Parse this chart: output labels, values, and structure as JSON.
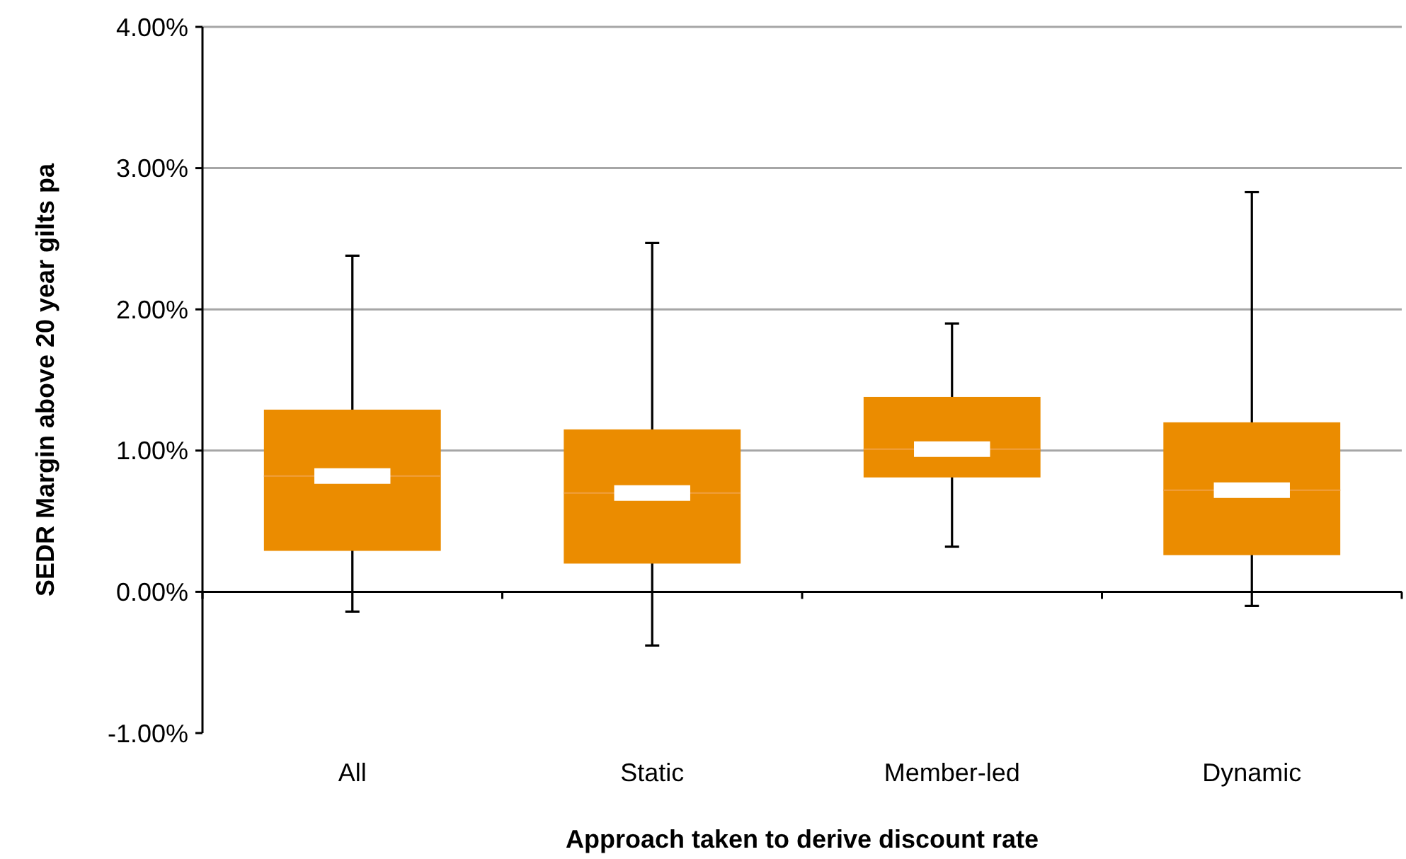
{
  "chart_data": {
    "type": "box",
    "xlabel": "Approach taken to derive discount rate",
    "ylabel": "SEDR Margin above 20 year gilts pa",
    "categories": [
      "All",
      "Static",
      "Member-led",
      "Dynamic"
    ],
    "series": [
      {
        "color": "#eb8c00",
        "boxes": [
          {
            "low": -0.14,
            "q1": 0.29,
            "median": 0.82,
            "q3": 1.29,
            "high": 2.38
          },
          {
            "low": -0.38,
            "q1": 0.2,
            "median": 0.7,
            "q3": 1.15,
            "high": 2.47
          },
          {
            "low": 0.32,
            "q1": 0.81,
            "median": 1.01,
            "q3": 1.38,
            "high": 1.9
          },
          {
            "low": -0.1,
            "q1": 0.26,
            "median": 0.72,
            "q3": 1.2,
            "high": 2.83
          }
        ]
      }
    ],
    "ylim": [
      -1,
      4
    ],
    "yticks": [
      {
        "value": -1,
        "label": "-1.00%"
      },
      {
        "value": 0,
        "label": "0.00%"
      },
      {
        "value": 1,
        "label": "1.00%"
      },
      {
        "value": 2,
        "label": "2.00%"
      },
      {
        "value": 3,
        "label": "3.00%"
      },
      {
        "value": 4,
        "label": "4.00%"
      }
    ],
    "grid": "y"
  }
}
